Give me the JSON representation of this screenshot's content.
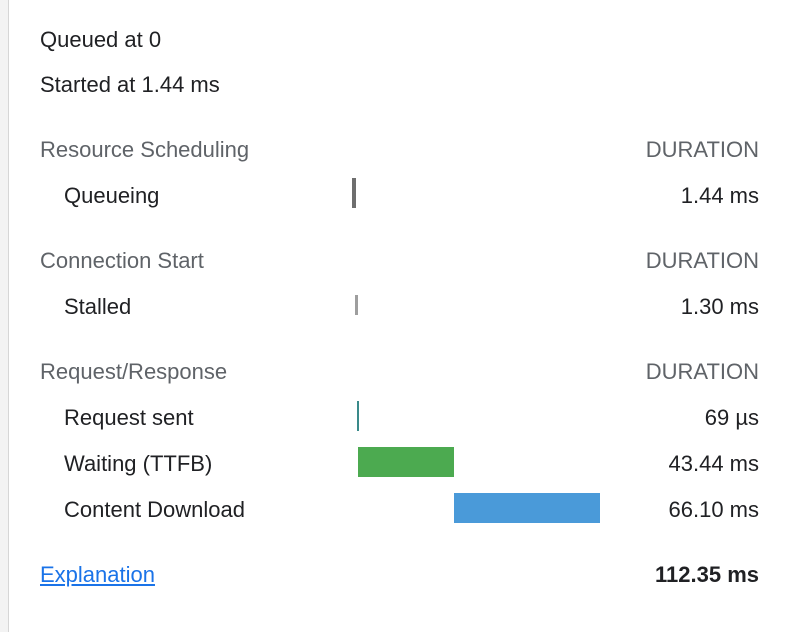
{
  "summary": {
    "queued": "Queued at 0",
    "started": "Started at 1.44 ms"
  },
  "sections": [
    {
      "title": "Resource Scheduling",
      "duration_header": "DURATION",
      "rows": [
        {
          "label": "Queueing",
          "value": "1.44 ms",
          "bar_color": "#6e6e6e"
        }
      ]
    },
    {
      "title": "Connection Start",
      "duration_header": "DURATION",
      "rows": [
        {
          "label": "Stalled",
          "value": "1.30 ms",
          "bar_color": "#9e9e9e"
        }
      ]
    },
    {
      "title": "Request/Response",
      "duration_header": "DURATION",
      "rows": [
        {
          "label": "Request sent",
          "value": "69 µs",
          "bar_color": "#3a8a8a"
        },
        {
          "label": "Waiting (TTFB)",
          "value": "43.44 ms",
          "bar_color": "#4caa50"
        },
        {
          "label": "Content Download",
          "value": "66.10 ms",
          "bar_color": "#4a9ad9"
        }
      ]
    }
  ],
  "footer": {
    "link_label": "Explanation",
    "total": "112.35 ms"
  },
  "colors": {
    "link": "#1a73e8",
    "waiting": "#4caa50",
    "download": "#4a9ad9"
  }
}
